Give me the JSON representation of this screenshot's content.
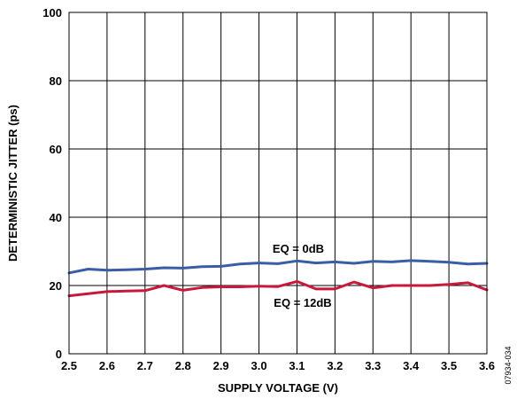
{
  "chart_data": {
    "type": "line",
    "title": "",
    "xlabel": "SUPPLY VOLTAGE (V)",
    "ylabel": "DETERMINISTIC JITTER (ps)",
    "xlim": [
      2.5,
      3.6
    ],
    "ylim": [
      0,
      100
    ],
    "x_ticks": [
      2.5,
      2.6,
      2.7,
      2.8,
      2.9,
      3.0,
      3.1,
      3.2,
      3.3,
      3.4,
      3.5,
      3.6
    ],
    "x_tick_labels": [
      "2.5",
      "2.6",
      "2.7",
      "2.8",
      "2.9",
      "3.0",
      "3.1",
      "3.2",
      "3.3",
      "3.4",
      "3.5",
      "3.6"
    ],
    "y_ticks": [
      0,
      20,
      40,
      60,
      80,
      100
    ],
    "y_tick_labels": [
      "0",
      "20",
      "40",
      "60",
      "80",
      "100"
    ],
    "grid": true,
    "x": [
      2.5,
      2.55,
      2.6,
      2.65,
      2.7,
      2.75,
      2.8,
      2.85,
      2.9,
      2.95,
      3.0,
      3.05,
      3.1,
      3.15,
      3.2,
      3.25,
      3.3,
      3.35,
      3.4,
      3.45,
      3.5,
      3.55,
      3.6
    ],
    "series": [
      {
        "name": "EQ = 0dB",
        "color": "#3a5ea6",
        "values": [
          23.7,
          24.8,
          24.5,
          24.6,
          24.8,
          25.2,
          25.1,
          25.5,
          25.6,
          26.3,
          26.6,
          26.4,
          27.2,
          26.6,
          26.9,
          26.5,
          27.1,
          26.9,
          27.3,
          27.1,
          26.8,
          26.3,
          26.5
        ]
      },
      {
        "name": "EQ = 12dB",
        "color": "#c8193c",
        "values": [
          17.0,
          17.6,
          18.2,
          18.4,
          18.5,
          20.0,
          18.6,
          19.4,
          19.6,
          19.6,
          19.8,
          19.7,
          21.2,
          19.0,
          19.0,
          21.0,
          19.3,
          20.0,
          20.0,
          20.0,
          20.3,
          20.8,
          18.7
        ]
      }
    ],
    "annotations": [
      "EQ = 0dB",
      "EQ = 12dB"
    ],
    "figure_id": "07934-034"
  }
}
